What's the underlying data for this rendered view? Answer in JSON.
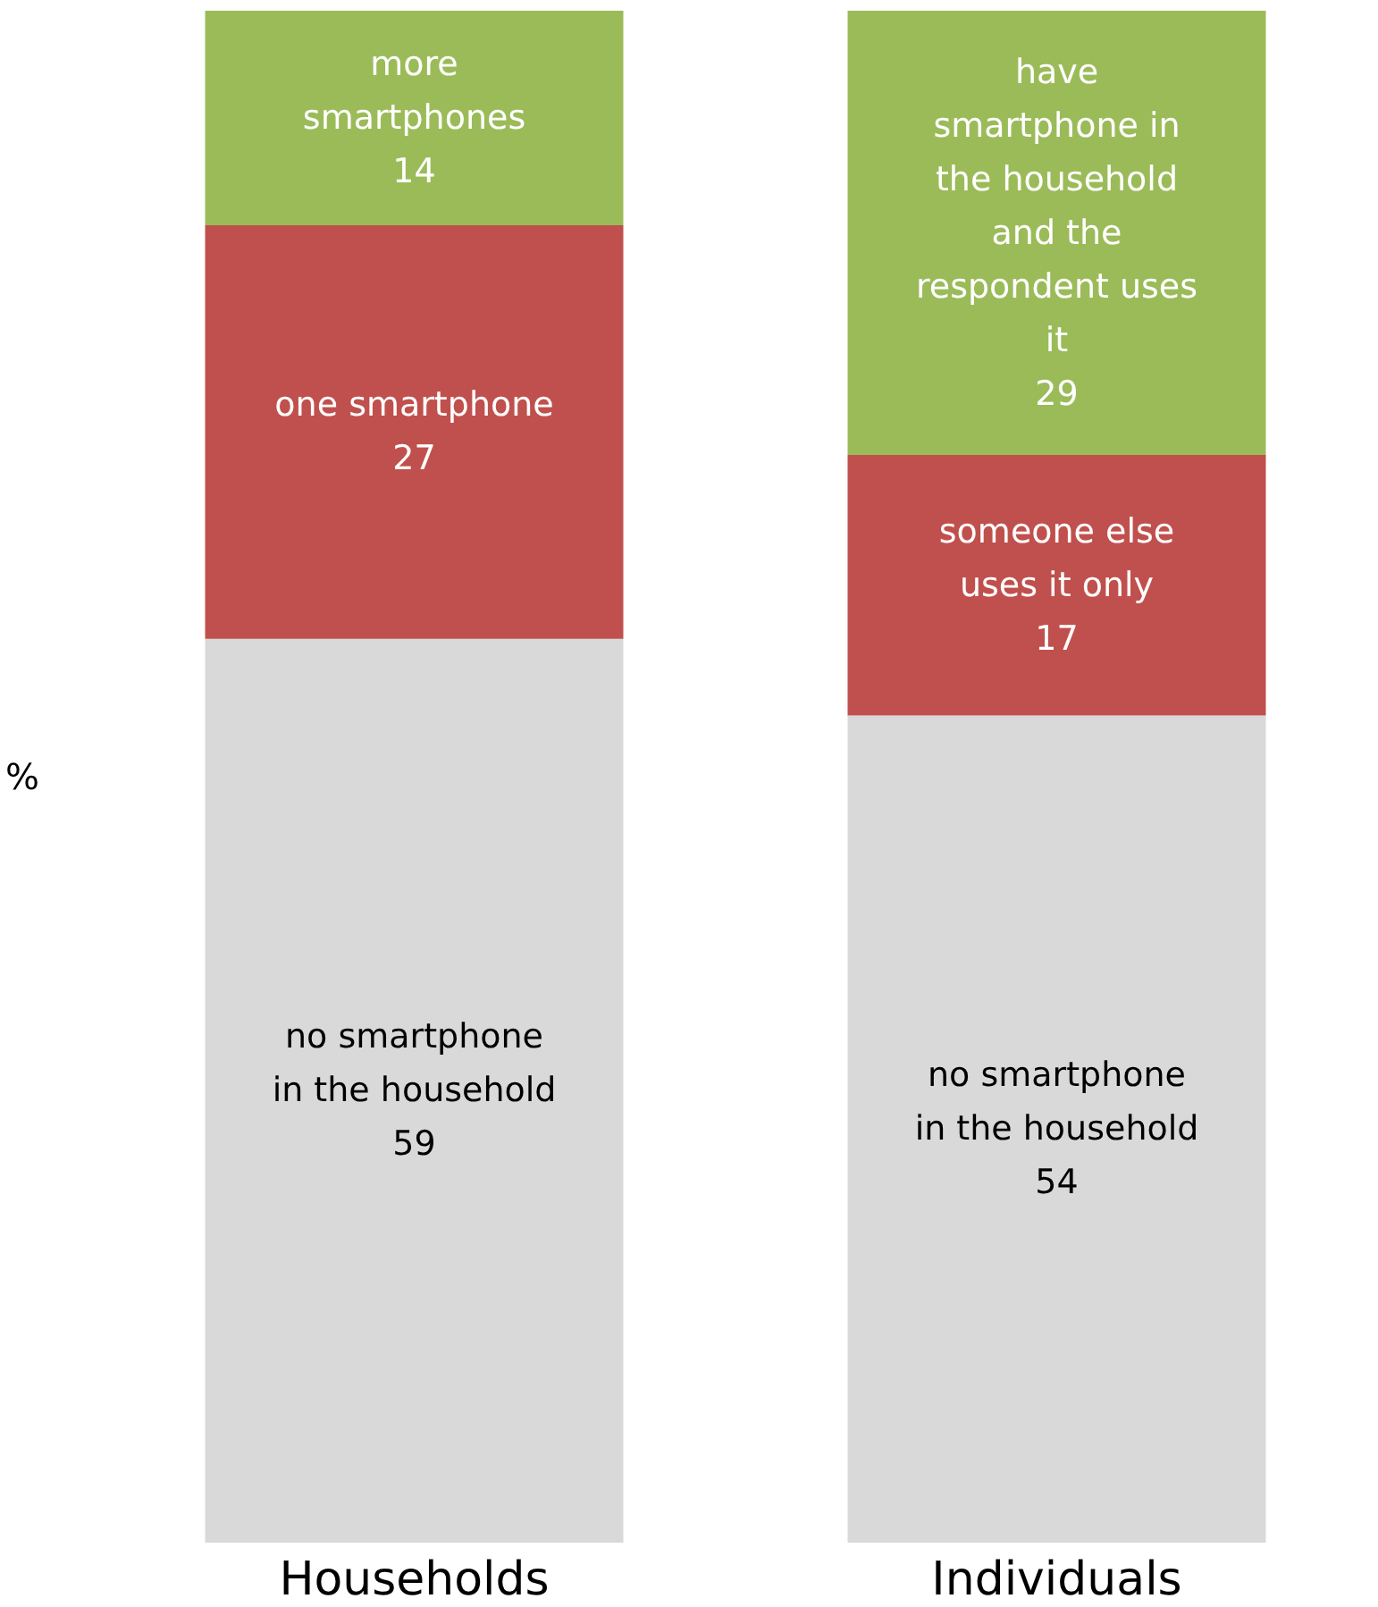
{
  "chart_data": {
    "type": "bar",
    "stacked": true,
    "ylabel": "%",
    "categories": [
      "Households",
      "Individuals"
    ],
    "ylim": [
      0,
      100
    ],
    "tick_labels": "x",
    "grid": false,
    "series": [
      {
        "color": "#d9d9d9",
        "values": [
          59,
          54
        ],
        "value_labels": [
          "no smartphone\nin the household\n59",
          "no smartphone\nin the household\n54"
        ]
      },
      {
        "color": "#c0504d",
        "values": [
          27,
          17
        ],
        "value_labels": [
          "one smartphone\n27",
          "someone else\nuses it only\n17"
        ]
      },
      {
        "color": "#9bbb59",
        "values": [
          14,
          29
        ],
        "value_labels": [
          "more\nsmartphones\n14",
          "have\nsmartphone in\nthe household\nand the\nrespondent uses\nit\n29"
        ]
      }
    ]
  }
}
